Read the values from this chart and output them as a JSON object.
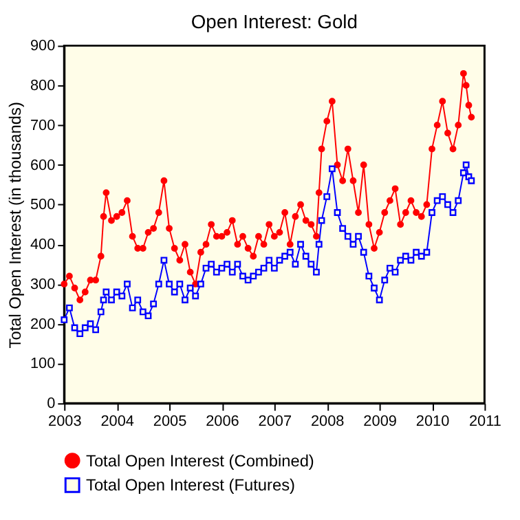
{
  "chart_data": {
    "type": "line",
    "title": "Open Interest: Gold",
    "ylabel": "Total Open Interest (in thousands)",
    "x": [
      2003.0,
      2003.1,
      2003.2,
      2003.3,
      2003.4,
      2003.5,
      2003.6,
      2003.7,
      2003.75,
      2003.8,
      2003.9,
      2004.0,
      2004.1,
      2004.2,
      2004.3,
      2004.4,
      2004.5,
      2004.6,
      2004.7,
      2004.8,
      2004.9,
      2005.0,
      2005.1,
      2005.2,
      2005.3,
      2005.4,
      2005.5,
      2005.6,
      2005.7,
      2005.8,
      2005.9,
      2006.0,
      2006.1,
      2006.2,
      2006.3,
      2006.4,
      2006.5,
      2006.6,
      2006.7,
      2006.8,
      2006.9,
      2007.0,
      2007.1,
      2007.2,
      2007.3,
      2007.4,
      2007.5,
      2007.6,
      2007.7,
      2007.8,
      2007.85,
      2007.9,
      2008.0,
      2008.1,
      2008.2,
      2008.3,
      2008.4,
      2008.5,
      2008.6,
      2008.7,
      2008.8,
      2008.9,
      2009.0,
      2009.1,
      2009.2,
      2009.3,
      2009.4,
      2009.5,
      2009.6,
      2009.7,
      2009.8,
      2009.9,
      2010.0,
      2010.1,
      2010.2,
      2010.3,
      2010.4,
      2010.5,
      2010.6,
      2010.65,
      2010.7,
      2010.75
    ],
    "series": [
      {
        "name": "Total Open Interest (Combined)",
        "color": "#ff0000",
        "marker": "circle",
        "values": [
          300,
          320,
          290,
          260,
          280,
          310,
          310,
          370,
          470,
          530,
          460,
          470,
          480,
          510,
          420,
          390,
          390,
          430,
          440,
          480,
          560,
          440,
          390,
          360,
          400,
          330,
          300,
          380,
          400,
          450,
          420,
          420,
          430,
          460,
          400,
          420,
          390,
          370,
          420,
          400,
          450,
          420,
          430,
          480,
          400,
          470,
          500,
          460,
          450,
          420,
          530,
          640,
          710,
          760,
          600,
          560,
          640,
          560,
          480,
          600,
          450,
          390,
          430,
          480,
          510,
          540,
          450,
          480,
          510,
          480,
          470,
          500,
          640,
          700,
          760,
          680,
          640,
          700,
          830,
          800,
          750,
          720
        ]
      },
      {
        "name": "Total Open Interest (Futures)",
        "color": "#0000ff",
        "marker": "square",
        "values": [
          210,
          240,
          190,
          175,
          190,
          200,
          185,
          230,
          260,
          280,
          260,
          280,
          270,
          300,
          240,
          260,
          230,
          220,
          250,
          300,
          360,
          300,
          280,
          300,
          260,
          290,
          270,
          300,
          340,
          350,
          330,
          340,
          350,
          330,
          350,
          320,
          310,
          320,
          330,
          340,
          360,
          340,
          360,
          370,
          380,
          350,
          400,
          370,
          350,
          330,
          400,
          460,
          520,
          590,
          480,
          440,
          420,
          400,
          420,
          380,
          320,
          290,
          260,
          310,
          340,
          330,
          360,
          370,
          360,
          380,
          370,
          380,
          480,
          510,
          520,
          500,
          480,
          510,
          580,
          600,
          570,
          560
        ]
      }
    ],
    "xlim": [
      2003,
      2011
    ],
    "xticks": [
      2003,
      2004,
      2005,
      2006,
      2007,
      2008,
      2009,
      2010,
      2011
    ],
    "ylim": [
      0,
      900
    ],
    "yticks": [
      0,
      100,
      200,
      300,
      400,
      500,
      600,
      700,
      800,
      900
    ],
    "grid": false,
    "legend": "bottom"
  }
}
